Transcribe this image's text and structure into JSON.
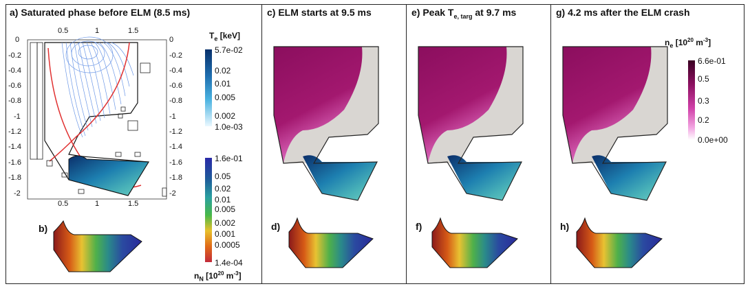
{
  "panels": [
    {
      "id": "a",
      "title": "a) Saturated phase before ELM (8.5 ms)"
    },
    {
      "id": "c",
      "title": "c) ELM starts at 9.5 ms"
    },
    {
      "id": "e",
      "title_prefix": "e) Peak T",
      "title_sub": "e, targ",
      "title_suffix": " at 9.7 ms"
    },
    {
      "id": "g",
      "title": "g) 4.2 ms after the ELM crash"
    }
  ],
  "sub_labels": {
    "b": "b)",
    "d": "d)",
    "f": "f)",
    "h": "h)"
  },
  "axes": {
    "top_x_ticks": [
      "0.5",
      "1",
      "1.5"
    ],
    "bottom_x_ticks": [
      "0.5",
      "1",
      "1.5"
    ],
    "left_y_ticks": [
      "0",
      "-0.2",
      "-0.4",
      "-0.6",
      "-0.8",
      "-1",
      "-1.2",
      "-1.4",
      "-1.6",
      "-1.8",
      "-2"
    ],
    "right_y_ticks": [
      "0",
      "-0.2",
      "-0.4",
      "-0.6",
      "-0.8",
      "-1",
      "-1.2",
      "-1.4",
      "-1.6",
      "-1.8",
      "-2"
    ]
  },
  "colorbar_te": {
    "title": "T",
    "title_sub": "e",
    "title_unit": " [keV]",
    "ticks": [
      "5.7e-02",
      "0.02",
      "0.01",
      "0.005",
      "0.002",
      "1.0e-03"
    ]
  },
  "colorbar_nn": {
    "title": "n",
    "title_sub": "N",
    "title_unit": " [10",
    "title_sup": "20",
    "title_end": " m",
    "title_sup2": "-3",
    "title_close": "]",
    "ticks": [
      "1.6e-01",
      "0.05",
      "0.02",
      "0.01",
      "0.005",
      "0.002",
      "0.001",
      "0.0005",
      "1.4e-04"
    ]
  },
  "colorbar_ne": {
    "title": "n",
    "title_sub": "e",
    "title_unit": " [10",
    "title_sup": "20",
    "title_end": " m",
    "title_sup2": "-3",
    "title_close": "]",
    "ticks": [
      "6.6e-01",
      "0.5",
      "0.3",
      "0.2",
      "0.0e+00"
    ]
  },
  "colors": {
    "te_top": "#08306b",
    "te_bottom": "#e8f7ff",
    "ne_top": "#3a0022",
    "ne_bottom": "#ffffff",
    "wall_gray": "#d9d6d2",
    "plasma": "#8c1060",
    "separatrix": "#e03030",
    "contour": "#5b8be0"
  }
}
